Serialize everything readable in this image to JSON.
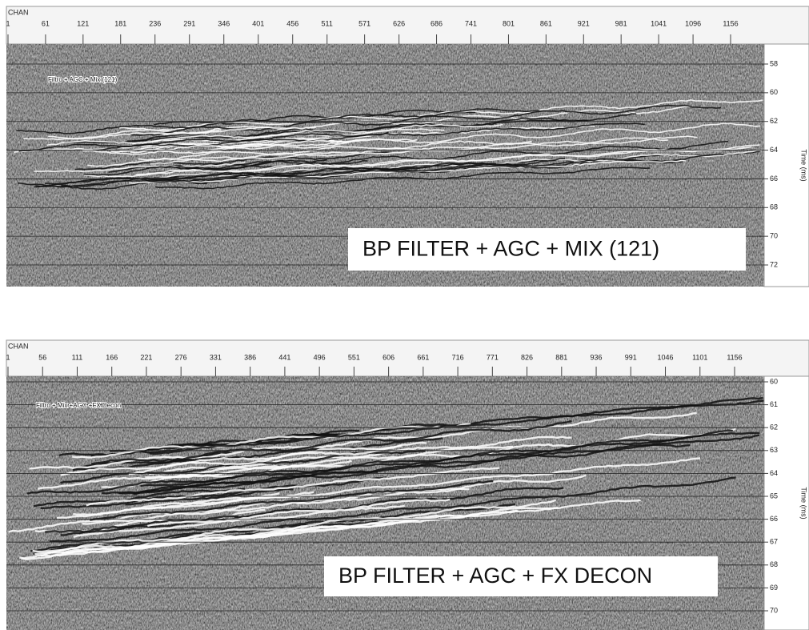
{
  "panels": [
    {
      "header": "CHAN",
      "channels": [
        1,
        61,
        121,
        181,
        236,
        291,
        346,
        401,
        456,
        511,
        571,
        626,
        686,
        741,
        801,
        861,
        921,
        981,
        1041,
        1096,
        1156
      ],
      "times": [
        58,
        60,
        62,
        64,
        66,
        68,
        70,
        72
      ],
      "time_label": "Time (ms)",
      "inline_label": "Filtro + AGC + Mix (121)",
      "caption": "BP FILTER + AGC + MIX (121)"
    },
    {
      "header": "CHAN",
      "channels": [
        1,
        56,
        111,
        166,
        221,
        276,
        331,
        386,
        441,
        496,
        551,
        606,
        661,
        716,
        771,
        826,
        881,
        936,
        991,
        1046,
        1101,
        1156
      ],
      "times": [
        60,
        61,
        62,
        63,
        64,
        65,
        66,
        67,
        68,
        69,
        70
      ],
      "time_label": "Time (ms)",
      "inline_label": "Filtro + Mix +AGC +FX Decon",
      "caption": "BP FILTER + AGC + FX DECON"
    }
  ]
}
